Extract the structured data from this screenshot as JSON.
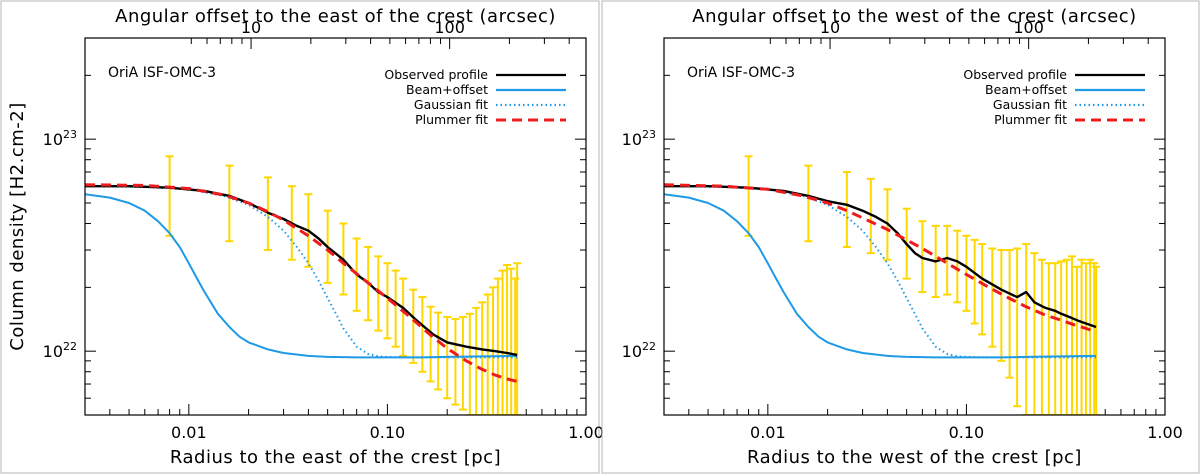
{
  "chart_data": [
    {
      "type": "line",
      "panel": "east",
      "title": "OriA ISF-OMC-3",
      "xlabel": "Radius to the east of the crest [pc]",
      "ylabel": "Column density [H2.cm-2]",
      "top_xlabel": "Angular offset to the east of the crest (arcsec)",
      "xscale": "log",
      "yscale": "log",
      "xlim": [
        0.003,
        1.0
      ],
      "ylim": [
        5e+21,
        3e+23
      ],
      "xticks": [
        {
          "v": 0.01,
          "label": "0.01"
        },
        {
          "v": 0.1,
          "label": "0.10"
        },
        {
          "v": 1.0,
          "label": "1.00"
        }
      ],
      "yticks": [
        {
          "v": 1e+22,
          "base": "10",
          "exp": "22"
        },
        {
          "v": 1e+23,
          "base": "10",
          "exp": "23"
        }
      ],
      "top_ticks": [
        {
          "v": 10,
          "label": "10"
        },
        {
          "v": 100,
          "label": "100"
        }
      ],
      "arcsec_per_pc": 486,
      "legend": {
        "placement": "top-right",
        "entries": [
          "Observed profile",
          "Beam+offset",
          "Gaussian fit",
          "Plummer fit"
        ]
      },
      "series": [
        {
          "name": "Observed profile",
          "color": "#000000",
          "style": "solid",
          "x": [
            0.003,
            0.005,
            0.008,
            0.012,
            0.016,
            0.02,
            0.025,
            0.03,
            0.035,
            0.04,
            0.045,
            0.05,
            0.06,
            0.07,
            0.08,
            0.09,
            0.1,
            0.12,
            0.14,
            0.17,
            0.2,
            0.25,
            0.3,
            0.35,
            0.4,
            0.45
          ],
          "y": [
            6e+22,
            6e+22,
            5.9e+22,
            5.7e+22,
            5.4e+22,
            5e+22,
            4.5e+22,
            4.2e+22,
            3.9e+22,
            3.7e+22,
            3.4e+22,
            3.1e+22,
            2.7e+22,
            2.3e+22,
            2.1e+22,
            1.9e+22,
            1.8e+22,
            1.6e+22,
            1.4e+22,
            1.2e+22,
            1.1e+22,
            1.05e+22,
            1.02e+22,
            1e+22,
            9.8e+21,
            9.6e+21
          ]
        },
        {
          "name": "Beam+offset",
          "color": "#1e9ae6",
          "style": "solid",
          "x": [
            0.003,
            0.004,
            0.005,
            0.006,
            0.007,
            0.008,
            0.009,
            0.01,
            0.011,
            0.012,
            0.014,
            0.016,
            0.018,
            0.02,
            0.025,
            0.03,
            0.04,
            0.05,
            0.07,
            0.1,
            0.15,
            0.2,
            0.3,
            0.45
          ],
          "y": [
            5.5e+22,
            5.3e+22,
            5e+22,
            4.6e+22,
            4.1e+22,
            3.6e+22,
            3.1e+22,
            2.6e+22,
            2.2e+22,
            1.9e+22,
            1.5e+22,
            1.3e+22,
            1.17e+22,
            1.1e+22,
            1.02e+22,
            9.8e+21,
            9.5e+21,
            9.4e+21,
            9.35e+21,
            9.35e+21,
            9.35e+21,
            9.4e+21,
            9.45e+21,
            9.5e+21
          ]
        },
        {
          "name": "Gaussian fit",
          "color": "#1e9ae6",
          "style": "dotted",
          "x": [
            0.003,
            0.006,
            0.01,
            0.015,
            0.02,
            0.025,
            0.03,
            0.035,
            0.04,
            0.045,
            0.05,
            0.055,
            0.06,
            0.07,
            0.08,
            0.09,
            0.1,
            0.12,
            0.15,
            0.2,
            0.3,
            0.45
          ],
          "y": [
            6e+22,
            5.95e+22,
            5.8e+22,
            5.4e+22,
            4.9e+22,
            4.3e+22,
            3.7e+22,
            3.1e+22,
            2.6e+22,
            2.15e+22,
            1.78e+22,
            1.5e+22,
            1.28e+22,
            1.05e+22,
            9.7e+21,
            9.45e+21,
            9.4e+21,
            9.35e+21,
            9.35e+21,
            9.35e+21,
            9.35e+21,
            9.35e+21
          ]
        },
        {
          "name": "Plummer fit",
          "color": "#ee1c1c",
          "style": "dashed",
          "x": [
            0.003,
            0.006,
            0.01,
            0.015,
            0.02,
            0.025,
            0.03,
            0.04,
            0.05,
            0.06,
            0.08,
            0.1,
            0.13,
            0.16,
            0.2,
            0.25,
            0.3,
            0.35,
            0.4,
            0.45
          ],
          "y": [
            6.1e+22,
            6.05e+22,
            5.85e+22,
            5.45e+22,
            5e+22,
            4.55e+22,
            4.15e+22,
            3.5e+22,
            3e+22,
            2.6e+22,
            2.1e+22,
            1.78e+22,
            1.45e+22,
            1.22e+22,
            1.03e+22,
            9e+21,
            8.2e+21,
            7.7e+21,
            7.4e+21,
            7.2e+21
          ]
        }
      ],
      "error_bars": {
        "color": "#ffd700",
        "x": [
          0.008,
          0.016,
          0.025,
          0.033,
          0.04,
          0.05,
          0.06,
          0.07,
          0.08,
          0.09,
          0.1,
          0.11,
          0.12,
          0.135,
          0.15,
          0.165,
          0.18,
          0.2,
          0.22,
          0.24,
          0.26,
          0.28,
          0.3,
          0.32,
          0.34,
          0.36,
          0.38,
          0.4,
          0.42,
          0.44,
          0.45
        ],
        "y": [
          5.9e+22,
          5.4e+22,
          4.5e+22,
          4.1e+22,
          3.7e+22,
          3.1e+22,
          2.7e+22,
          2.3e+22,
          2.1e+22,
          1.9e+22,
          1.8e+22,
          1.65e+22,
          1.55e+22,
          1.45e+22,
          1.35e+22,
          1.25e+22,
          1.2e+22,
          1.12e+22,
          1.07e+22,
          1.04e+22,
          1.02e+22,
          1e+22,
          1e+22,
          9.9e+21,
          9.8e+21,
          9.8e+21,
          9.7e+21,
          9.7e+21,
          9.6e+21,
          9.6e+21,
          9.5e+21
        ],
        "low": [
          3.5e+22,
          3.3e+22,
          3e+22,
          2.7e+22,
          2.5e+22,
          2.1e+22,
          1.85e+22,
          1.55e+22,
          1.4e+22,
          1.25e+22,
          1.15e+22,
          1.05e+22,
          9.5e+21,
          8.8e+21,
          8e+21,
          7.2e+21,
          6.6e+21,
          6e+21,
          5.6e+21,
          5.3e+21,
          5e+21,
          5e+21,
          5e+21,
          5e+21,
          5e+21,
          5e+21,
          5e+21,
          5e+21,
          5e+21,
          5e+21,
          5e+21
        ],
        "high": [
          8.3e+22,
          7.5e+22,
          6.6e+22,
          6e+22,
          5.5e+22,
          4.6e+22,
          4e+22,
          3.4e+22,
          3.1e+22,
          2.8e+22,
          2.6e+22,
          2.4e+22,
          2.2e+22,
          1.95e+22,
          1.8e+22,
          1.62e+22,
          1.52e+22,
          1.45e+22,
          1.42e+22,
          1.45e+22,
          1.5e+22,
          1.6e+22,
          1.7e+22,
          1.85e+22,
          2e+22,
          2.2e+22,
          2.4e+22,
          2.55e+22,
          2.45e+22,
          2.2e+22,
          2.6e+22
        ]
      }
    },
    {
      "type": "line",
      "panel": "west",
      "title": "OriA ISF-OMC-3",
      "xlabel": "Radius to the west of the crest [pc]",
      "ylabel": "Column density [H2.cm-2]",
      "top_xlabel": "Angular offset to the west of the crest (arcsec)",
      "xscale": "log",
      "yscale": "log",
      "xlim": [
        0.003,
        1.0
      ],
      "ylim": [
        5e+21,
        3e+23
      ],
      "xticks": [
        {
          "v": 0.01,
          "label": "0.01"
        },
        {
          "v": 0.1,
          "label": "0.10"
        },
        {
          "v": 1.0,
          "label": "1.00"
        }
      ],
      "yticks": [
        {
          "v": 1e+22,
          "base": "10",
          "exp": "22"
        },
        {
          "v": 1e+23,
          "base": "10",
          "exp": "23"
        }
      ],
      "top_ticks": [
        {
          "v": 10,
          "label": "10"
        },
        {
          "v": 100,
          "label": "100"
        }
      ],
      "arcsec_per_pc": 486,
      "legend": {
        "placement": "top-right",
        "entries": [
          "Observed profile",
          "Beam+offset",
          "Gaussian fit",
          "Plummer fit"
        ]
      },
      "series": [
        {
          "name": "Observed profile",
          "color": "#000000",
          "style": "solid",
          "x": [
            0.003,
            0.005,
            0.008,
            0.012,
            0.016,
            0.02,
            0.025,
            0.03,
            0.035,
            0.04,
            0.045,
            0.05,
            0.055,
            0.06,
            0.07,
            0.08,
            0.09,
            0.1,
            0.12,
            0.15,
            0.18,
            0.2,
            0.22,
            0.25,
            0.28,
            0.3,
            0.33,
            0.36,
            0.4,
            0.45
          ],
          "y": [
            6e+22,
            6e+22,
            5.9e+22,
            5.7e+22,
            5.4e+22,
            5.1e+22,
            4.9e+22,
            4.6e+22,
            4.3e+22,
            4e+22,
            3.6e+22,
            3.2e+22,
            2.9e+22,
            2.75e+22,
            2.65e+22,
            2.75e+22,
            2.65e+22,
            2.5e+22,
            2.2e+22,
            1.95e+22,
            1.8e+22,
            1.9e+22,
            1.7e+22,
            1.6e+22,
            1.55e+22,
            1.5e+22,
            1.45e+22,
            1.4e+22,
            1.35e+22,
            1.3e+22
          ]
        },
        {
          "name": "Beam+offset",
          "color": "#1e9ae6",
          "style": "solid",
          "x": [
            0.003,
            0.004,
            0.005,
            0.006,
            0.007,
            0.008,
            0.009,
            0.01,
            0.011,
            0.012,
            0.014,
            0.016,
            0.018,
            0.02,
            0.025,
            0.03,
            0.04,
            0.05,
            0.07,
            0.1,
            0.15,
            0.2,
            0.3,
            0.45
          ],
          "y": [
            5.5e+22,
            5.3e+22,
            5e+22,
            4.6e+22,
            4.1e+22,
            3.6e+22,
            3.1e+22,
            2.6e+22,
            2.2e+22,
            1.9e+22,
            1.5e+22,
            1.3e+22,
            1.17e+22,
            1.1e+22,
            1.02e+22,
            9.8e+21,
            9.5e+21,
            9.4e+21,
            9.35e+21,
            9.35e+21,
            9.35e+21,
            9.4e+21,
            9.45e+21,
            9.5e+21
          ]
        },
        {
          "name": "Gaussian fit",
          "color": "#1e9ae6",
          "style": "dotted",
          "x": [
            0.003,
            0.006,
            0.01,
            0.015,
            0.02,
            0.025,
            0.03,
            0.035,
            0.04,
            0.045,
            0.05,
            0.055,
            0.06,
            0.07,
            0.08,
            0.09,
            0.1,
            0.12,
            0.15,
            0.2,
            0.3,
            0.45
          ],
          "y": [
            6e+22,
            5.95e+22,
            5.8e+22,
            5.4e+22,
            4.9e+22,
            4.3e+22,
            3.7e+22,
            3.1e+22,
            2.6e+22,
            2.15e+22,
            1.78e+22,
            1.5e+22,
            1.28e+22,
            1.05e+22,
            9.7e+21,
            9.45e+21,
            9.4e+21,
            9.35e+21,
            9.35e+21,
            9.35e+21,
            9.35e+21,
            9.35e+21
          ]
        },
        {
          "name": "Plummer fit",
          "color": "#ee1c1c",
          "style": "dashed",
          "x": [
            0.003,
            0.006,
            0.01,
            0.015,
            0.02,
            0.025,
            0.03,
            0.04,
            0.05,
            0.06,
            0.08,
            0.1,
            0.13,
            0.16,
            0.2,
            0.25,
            0.3,
            0.35,
            0.4,
            0.45
          ],
          "y": [
            6.1e+22,
            6e+22,
            5.8e+22,
            5.4e+22,
            5e+22,
            4.6e+22,
            4.25e+22,
            3.75e+22,
            3.35e+22,
            3.05e+22,
            2.6e+22,
            2.3e+22,
            2e+22,
            1.8e+22,
            1.62e+22,
            1.48e+22,
            1.4e+22,
            1.33e+22,
            1.28e+22,
            1.23e+22
          ]
        }
      ],
      "error_bars": {
        "color": "#ffd700",
        "x": [
          0.008,
          0.016,
          0.025,
          0.033,
          0.04,
          0.05,
          0.06,
          0.07,
          0.08,
          0.09,
          0.1,
          0.11,
          0.12,
          0.135,
          0.15,
          0.165,
          0.18,
          0.2,
          0.22,
          0.24,
          0.26,
          0.28,
          0.3,
          0.32,
          0.34,
          0.36,
          0.38,
          0.4,
          0.42,
          0.44,
          0.45
        ],
        "y": [
          5.9e+22,
          5.4e+22,
          4.9e+22,
          4.5e+22,
          4e+22,
          3.2e+22,
          2.75e+22,
          2.65e+22,
          2.75e+22,
          2.65e+22,
          2.5e+22,
          2.35e+22,
          2.2e+22,
          2.05e+22,
          1.95e+22,
          1.85e+22,
          1.8e+22,
          1.9e+22,
          1.7e+22,
          1.65e+22,
          1.6e+22,
          1.55e+22,
          1.5e+22,
          1.48e+22,
          1.45e+22,
          1.4e+22,
          1.38e+22,
          1.35e+22,
          1.33e+22,
          1.3e+22,
          1.3e+22
        ],
        "low": [
          3.5e+22,
          3.3e+22,
          3.1e+22,
          2.9e+22,
          2.7e+22,
          2.2e+22,
          1.9e+22,
          1.8e+22,
          1.85e+22,
          1.7e+22,
          1.55e+22,
          1.35e+22,
          1.2e+22,
          1.05e+22,
          9e+21,
          7.5e+21,
          5.5e+21,
          5e+21,
          5e+21,
          5e+21,
          5e+21,
          5e+21,
          5e+21,
          5e+21,
          5e+21,
          5e+21,
          5e+21,
          5e+21,
          5e+21,
          5e+21,
          5e+21
        ],
        "high": [
          8.3e+22,
          7.5e+22,
          7e+22,
          6.5e+22,
          5.8e+22,
          4.7e+22,
          4.1e+22,
          3.9e+22,
          3.9e+22,
          3.7e+22,
          3.5e+22,
          3.35e+22,
          3.2e+22,
          3.05e+22,
          3e+22,
          3e+22,
          3.05e+22,
          3.2e+22,
          2.9e+22,
          2.7e+22,
          2.6e+22,
          2.6e+22,
          2.65e+22,
          2.7e+22,
          2.8e+22,
          2.5e+22,
          2.7e+22,
          2.6e+22,
          2.7e+22,
          2.6e+22,
          2.5e+22
        ]
      }
    }
  ]
}
